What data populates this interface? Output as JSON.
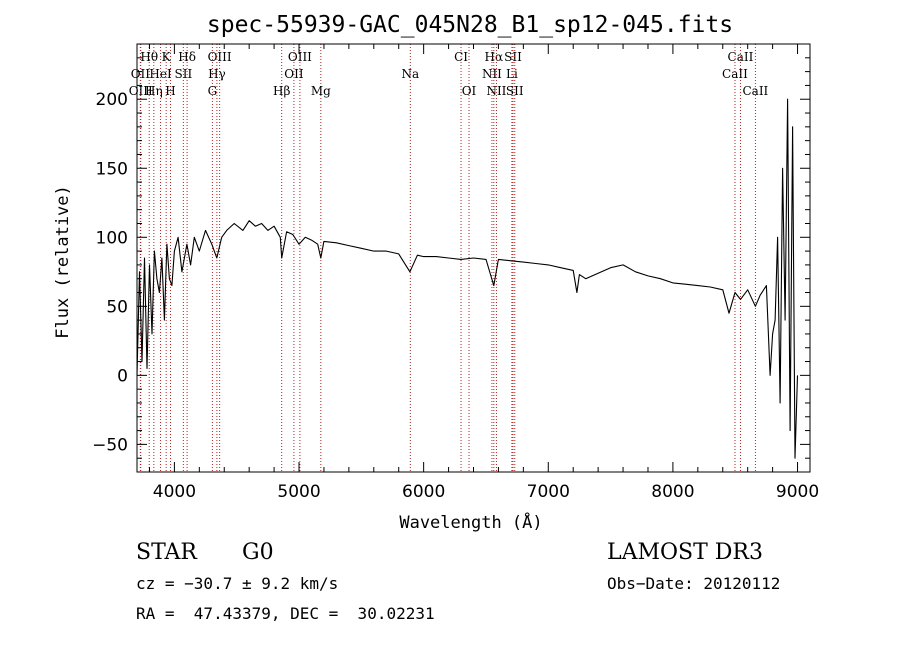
{
  "chart_data": {
    "type": "line",
    "title": "spec-55939-GAC_045N28_B1_sp12-045.fits",
    "xlabel": "Wavelength (Å)",
    "ylabel": "Flux (relative)",
    "xlim": [
      3700,
      9100
    ],
    "ylim": [
      -70,
      240
    ],
    "xticks": [
      4000,
      5000,
      6000,
      7000,
      8000,
      9000
    ],
    "yticks": [
      -50,
      0,
      50,
      100,
      150,
      200
    ],
    "grid": false,
    "series": [
      {
        "x": [
          3700,
          3720,
          3740,
          3760,
          3780,
          3800,
          3820,
          3840,
          3860,
          3880,
          3900,
          3920,
          3940,
          3960,
          3980,
          4000,
          4030,
          4060,
          4100,
          4130,
          4160,
          4200,
          4250,
          4300,
          4340,
          4380,
          4420,
          4480,
          4550,
          4600,
          4650,
          4700,
          4750,
          4800,
          4850,
          4861,
          4900,
          4950,
          5000,
          5050,
          5100,
          5150,
          5175,
          5200,
          5300,
          5400,
          5500,
          5600,
          5700,
          5800,
          5890,
          5950,
          6000,
          6100,
          6200,
          6300,
          6400,
          6500,
          6563,
          6600,
          6700,
          6800,
          6900,
          7000,
          7100,
          7200,
          7230,
          7250,
          7300,
          7400,
          7500,
          7600,
          7700,
          7800,
          7900,
          8000,
          8100,
          8200,
          8300,
          8400,
          8450,
          8498,
          8542,
          8600,
          8662,
          8700,
          8750,
          8780,
          8800,
          8820,
          8840,
          8860,
          8880,
          8900,
          8920,
          8940,
          8960,
          8980,
          9000
        ],
        "y": [
          0,
          75,
          10,
          85,
          5,
          80,
          30,
          90,
          70,
          60,
          85,
          40,
          95,
          70,
          65,
          90,
          100,
          75,
          95,
          80,
          100,
          90,
          105,
          95,
          85,
          100,
          105,
          110,
          105,
          112,
          108,
          110,
          105,
          108,
          100,
          85,
          104,
          102,
          95,
          100,
          98,
          95,
          85,
          97,
          96,
          94,
          92,
          90,
          90,
          88,
          75,
          87,
          86,
          86,
          85,
          84,
          85,
          84,
          65,
          84,
          83,
          82,
          81,
          80,
          78,
          76,
          60,
          73,
          70,
          74,
          78,
          80,
          75,
          72,
          70,
          67,
          66,
          65,
          64,
          62,
          45,
          60,
          55,
          62,
          50,
          58,
          65,
          0,
          30,
          40,
          100,
          -20,
          150,
          40,
          200,
          -40,
          180,
          -60,
          0
        ]
      }
    ],
    "lines": [
      {
        "label": "Hθ",
        "x": 3798,
        "row": 0
      },
      {
        "label": "OII",
        "x": 3727,
        "row": 1
      },
      {
        "label": "OIII",
        "x": 3730,
        "row": 2
      },
      {
        "label": "K",
        "x": 3934,
        "row": 0
      },
      {
        "label": "HeI",
        "x": 3889,
        "row": 1
      },
      {
        "label": "Hη",
        "x": 3835,
        "row": 2
      },
      {
        "label": "SII",
        "x": 4072,
        "row": 1
      },
      {
        "label": "H",
        "x": 3969,
        "row": 2
      },
      {
        "label": "Hδ",
        "x": 4102,
        "row": 0
      },
      {
        "label": "OIII",
        "x": 4363,
        "row": 0
      },
      {
        "label": "Hγ",
        "x": 4341,
        "row": 1
      },
      {
        "label": "G",
        "x": 4305,
        "row": 2
      },
      {
        "label": "OIII",
        "x": 5007,
        "row": 0
      },
      {
        "label": "OII",
        "x": 4959,
        "row": 1
      },
      {
        "label": "Hβ",
        "x": 4861,
        "row": 2
      },
      {
        "label": "Mg",
        "x": 5175,
        "row": 2
      },
      {
        "label": "Na",
        "x": 5893,
        "row": 1
      },
      {
        "label": "CI",
        "x": 6300,
        "row": 0
      },
      {
        "label": "OI",
        "x": 6364,
        "row": 2
      },
      {
        "label": "Hα",
        "x": 6563,
        "row": 0
      },
      {
        "label": "NII",
        "x": 6548,
        "row": 1
      },
      {
        "label": "NII",
        "x": 6584,
        "row": 2
      },
      {
        "label": "SII",
        "x": 6717,
        "row": 0
      },
      {
        "label": "Li",
        "x": 6708,
        "row": 1
      },
      {
        "label": "SII",
        "x": 6731,
        "row": 2
      },
      {
        "label": "CaII",
        "x": 8542,
        "row": 0
      },
      {
        "label": "CaII",
        "x": 8498,
        "row": 1
      },
      {
        "label": "CaII",
        "x": 8662,
        "row": 2
      }
    ]
  },
  "info": {
    "class": "STAR",
    "subclass": "G0",
    "survey": "LAMOST DR3",
    "cz": "cz = −30.7 ± 9.2 km/s",
    "obs_date": "Obs−Date: 20120112",
    "coords": "RA =  47.43379, DEC =  30.02231"
  },
  "colors": {
    "spectrum": "#000000",
    "line_markers": "#b22222"
  }
}
